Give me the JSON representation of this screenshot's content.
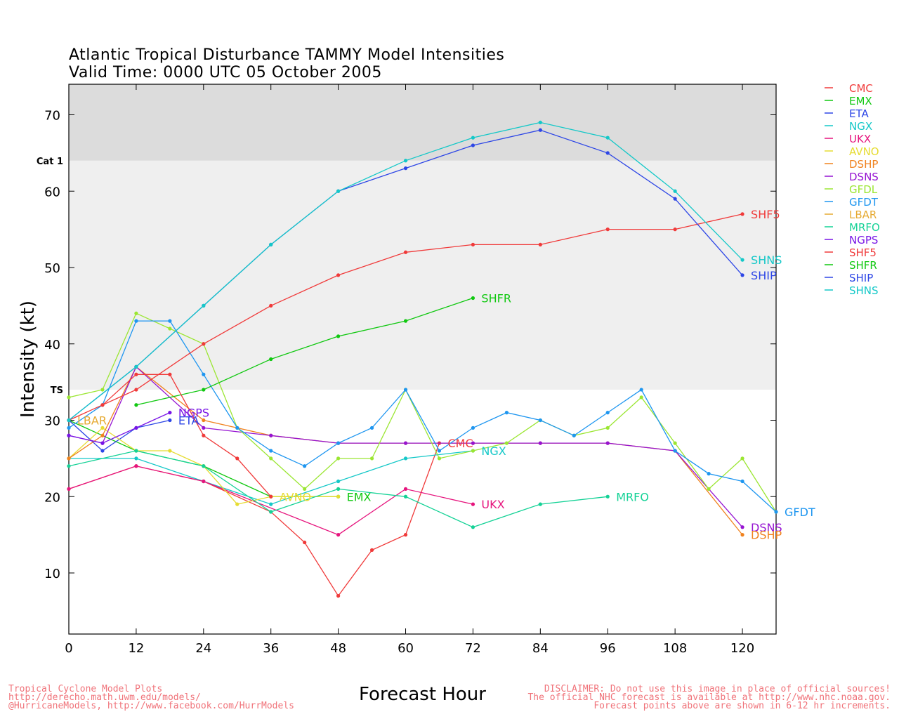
{
  "chart_data": {
    "type": "line",
    "title": "Atlantic Tropical Disturbance TAMMY Model Intensities",
    "subtitle": "Valid Time: 0000 UTC 05 October 2005",
    "xlabel": "Forecast Hour",
    "ylabel": "Intensity (kt)",
    "xlim": [
      0,
      126
    ],
    "ylim": [
      2,
      74
    ],
    "x_ticks": [
      0,
      12,
      24,
      36,
      48,
      60,
      72,
      84,
      96,
      108,
      120
    ],
    "y_ticks": [
      10,
      20,
      30,
      40,
      50,
      60,
      70
    ],
    "bands": [
      {
        "label": "TS",
        "from": 34,
        "to": 64,
        "color": "#efefef"
      },
      {
        "label": "Cat 1",
        "from": 64,
        "to": 74,
        "color": "#dcdcdc"
      }
    ],
    "legend_position": "right",
    "series": [
      {
        "name": "CMC",
        "color": "#f03a3a",
        "label": "CMC",
        "points": [
          [
            0,
            21
          ],
          [
            12,
            24
          ],
          [
            24,
            22
          ],
          [
            36,
            18
          ],
          [
            42,
            14
          ],
          [
            48,
            7
          ],
          [
            54,
            13
          ],
          [
            60,
            15
          ],
          [
            66,
            27
          ]
        ]
      },
      {
        "name": "EMX",
        "color": "#10c810",
        "label": "EMX",
        "points": [
          [
            0,
            30
          ],
          [
            12,
            26
          ],
          [
            24,
            24
          ],
          [
            36,
            20
          ],
          [
            48,
            20
          ]
        ]
      },
      {
        "name": "ETA",
        "color": "#2d46e6",
        "label": "ETA",
        "points": [
          [
            0,
            30
          ],
          [
            6,
            26
          ],
          [
            12,
            29
          ],
          [
            18,
            30
          ]
        ]
      },
      {
        "name": "NGX",
        "color": "#14c8c8",
        "label": "NGX",
        "points": [
          [
            0,
            25
          ],
          [
            12,
            25
          ],
          [
            24,
            22
          ],
          [
            36,
            19
          ],
          [
            48,
            22
          ],
          [
            60,
            25
          ],
          [
            72,
            26
          ]
        ]
      },
      {
        "name": "UKX",
        "color": "#e6147d",
        "label": "UKX",
        "points": [
          [
            0,
            21
          ],
          [
            12,
            24
          ],
          [
            24,
            22
          ],
          [
            48,
            15
          ],
          [
            60,
            21
          ],
          [
            72,
            19
          ]
        ]
      },
      {
        "name": "AVNO",
        "color": "#e6dc32",
        "label": "AVNO",
        "points": [
          [
            0,
            25
          ],
          [
            6,
            29
          ],
          [
            12,
            26
          ],
          [
            18,
            26
          ],
          [
            24,
            24
          ],
          [
            30,
            19
          ],
          [
            36,
            20
          ],
          [
            48,
            20
          ]
        ]
      },
      {
        "name": "DSHP",
        "color": "#f0821e",
        "label": "DSHP",
        "points": [
          [
            0,
            25
          ],
          [
            6,
            28
          ],
          [
            12,
            37
          ],
          [
            24,
            30
          ],
          [
            36,
            28
          ],
          [
            48,
            27
          ],
          [
            60,
            27
          ],
          [
            72,
            27
          ],
          [
            84,
            27
          ],
          [
            96,
            27
          ],
          [
            108,
            26
          ],
          [
            120,
            15
          ]
        ]
      },
      {
        "name": "DSNS",
        "color": "#9614d2",
        "label": "DSNS",
        "points": [
          [
            0,
            28
          ],
          [
            6,
            27
          ],
          [
            12,
            37
          ],
          [
            24,
            29
          ],
          [
            36,
            28
          ],
          [
            48,
            27
          ],
          [
            60,
            27
          ],
          [
            72,
            27
          ],
          [
            84,
            27
          ],
          [
            96,
            27
          ],
          [
            108,
            26
          ],
          [
            120,
            16
          ]
        ]
      },
      {
        "name": "GFDL",
        "color": "#9be632",
        "label": "GFDL",
        "points": [
          [
            0,
            33
          ],
          [
            6,
            34
          ],
          [
            12,
            44
          ],
          [
            18,
            42
          ],
          [
            24,
            40
          ],
          [
            30,
            29
          ],
          [
            36,
            25
          ],
          [
            42,
            21
          ],
          [
            48,
            25
          ],
          [
            54,
            25
          ],
          [
            60,
            34
          ],
          [
            66,
            25
          ],
          [
            72,
            26
          ],
          [
            78,
            27
          ],
          [
            84,
            30
          ],
          [
            90,
            28
          ],
          [
            96,
            29
          ],
          [
            102,
            33
          ],
          [
            108,
            27
          ],
          [
            114,
            21
          ],
          [
            120,
            25
          ],
          [
            126,
            18
          ]
        ]
      },
      {
        "name": "GFDT",
        "color": "#1e96f0",
        "label": "GFDT",
        "points": [
          [
            0,
            29
          ],
          [
            6,
            32
          ],
          [
            12,
            43
          ],
          [
            18,
            43
          ],
          [
            24,
            36
          ],
          [
            30,
            29
          ],
          [
            36,
            26
          ],
          [
            42,
            24
          ],
          [
            48,
            27
          ],
          [
            54,
            29
          ],
          [
            60,
            34
          ],
          [
            66,
            26
          ],
          [
            72,
            29
          ],
          [
            78,
            31
          ],
          [
            84,
            30
          ],
          [
            90,
            28
          ],
          [
            96,
            31
          ],
          [
            102,
            34
          ],
          [
            108,
            26
          ],
          [
            114,
            23
          ],
          [
            120,
            22
          ],
          [
            126,
            18
          ]
        ]
      },
      {
        "name": "LBAR",
        "color": "#e6aa32",
        "label": "LBAR",
        "points": [
          [
            0,
            30
          ]
        ]
      },
      {
        "name": "MRFO",
        "color": "#14d296",
        "label": "MRFO",
        "points": [
          [
            0,
            24
          ],
          [
            12,
            26
          ],
          [
            24,
            24
          ],
          [
            36,
            18
          ],
          [
            48,
            21
          ],
          [
            60,
            20
          ],
          [
            72,
            16
          ],
          [
            84,
            19
          ],
          [
            96,
            20
          ]
        ]
      },
      {
        "name": "NGPS",
        "color": "#7814e6",
        "label": "NGPS",
        "points": [
          [
            0,
            28
          ],
          [
            6,
            27
          ],
          [
            12,
            29
          ],
          [
            18,
            31
          ]
        ]
      },
      {
        "name": "SHF5",
        "color": "#f03a3a",
        "label": "SHF5",
        "points": [
          [
            0,
            30
          ],
          [
            12,
            34
          ],
          [
            24,
            40
          ],
          [
            36,
            45
          ],
          [
            48,
            49
          ],
          [
            60,
            52
          ],
          [
            72,
            53
          ],
          [
            84,
            53
          ],
          [
            96,
            55
          ],
          [
            108,
            55
          ],
          [
            120,
            57
          ]
        ]
      },
      {
        "name": "SHFR",
        "color": "#10c810",
        "label": "SHFR",
        "points": [
          [
            12,
            32
          ],
          [
            24,
            34
          ],
          [
            36,
            38
          ],
          [
            48,
            41
          ],
          [
            60,
            43
          ],
          [
            72,
            46
          ]
        ]
      },
      {
        "name": "SHIP",
        "color": "#2d46e6",
        "label": "SHIP",
        "points": [
          [
            0,
            30
          ],
          [
            12,
            37
          ],
          [
            24,
            45
          ],
          [
            36,
            53
          ],
          [
            48,
            60
          ],
          [
            60,
            63
          ],
          [
            72,
            66
          ],
          [
            84,
            68
          ],
          [
            96,
            65
          ],
          [
            108,
            59
          ],
          [
            120,
            49
          ]
        ]
      },
      {
        "name": "SHNS",
        "color": "#14c8c8",
        "label": "SHNS",
        "points": [
          [
            0,
            30
          ],
          [
            12,
            37
          ],
          [
            24,
            45
          ],
          [
            36,
            53
          ],
          [
            48,
            60
          ],
          [
            60,
            64
          ],
          [
            72,
            67
          ],
          [
            84,
            69
          ],
          [
            96,
            67
          ],
          [
            108,
            60
          ],
          [
            120,
            51
          ]
        ]
      },
      {
        "name": "SHF5 extra",
        "color": "#f03a3a",
        "label": "",
        "points": [
          [
            6,
            32
          ],
          [
            12,
            36
          ],
          [
            18,
            36
          ],
          [
            24,
            28
          ],
          [
            30,
            25
          ],
          [
            36,
            20
          ]
        ]
      }
    ],
    "end_labels": [
      {
        "text": "SHF5",
        "color": "#f03a3a",
        "at": [
          120,
          57
        ]
      },
      {
        "text": "SHNS",
        "color": "#14c8c8",
        "at": [
          120,
          51
        ]
      },
      {
        "text": "SHIP",
        "color": "#2d46e6",
        "at": [
          120,
          49
        ]
      },
      {
        "text": "SHFR",
        "color": "#10c810",
        "at": [
          72,
          46
        ]
      },
      {
        "text": "NGPS",
        "color": "#7814e6",
        "at": [
          18,
          31
        ]
      },
      {
        "text": "ETA",
        "color": "#2d46e6",
        "at": [
          18,
          30
        ]
      },
      {
        "text": "LBAR",
        "color": "#e6aa32",
        "at": [
          0,
          30
        ]
      },
      {
        "text": "CMC",
        "color": "#f03a3a",
        "at": [
          66,
          27
        ]
      },
      {
        "text": "NGX",
        "color": "#14c8c8",
        "at": [
          72,
          26
        ]
      },
      {
        "text": "AVNO",
        "color": "#e6dc32",
        "at": [
          36,
          20
        ]
      },
      {
        "text": "EMX",
        "color": "#10c810",
        "at": [
          48,
          20
        ]
      },
      {
        "text": "UKX",
        "color": "#e6147d",
        "at": [
          72,
          19
        ]
      },
      {
        "text": "MRFO",
        "color": "#14d296",
        "at": [
          96,
          20
        ]
      },
      {
        "text": "GFDT",
        "color": "#1e96f0",
        "at": [
          126,
          18
        ]
      },
      {
        "text": "DSNS",
        "color": "#9614d2",
        "at": [
          120,
          16
        ]
      },
      {
        "text": "DSHP",
        "color": "#f0821e",
        "at": [
          120,
          15
        ]
      }
    ]
  },
  "legend": [
    {
      "name": "CMC",
      "color": "#f03a3a"
    },
    {
      "name": "EMX",
      "color": "#10c810"
    },
    {
      "name": "ETA",
      "color": "#2d46e6"
    },
    {
      "name": "NGX",
      "color": "#14c8c8"
    },
    {
      "name": "UKX",
      "color": "#e6147d"
    },
    {
      "name": "AVNO",
      "color": "#e6dc32"
    },
    {
      "name": "DSHP",
      "color": "#f0821e"
    },
    {
      "name": "DSNS",
      "color": "#9614d2"
    },
    {
      "name": "GFDL",
      "color": "#9be632"
    },
    {
      "name": "GFDT",
      "color": "#1e96f0"
    },
    {
      "name": "LBAR",
      "color": "#e6aa32"
    },
    {
      "name": "MRFO",
      "color": "#14d296"
    },
    {
      "name": "NGPS",
      "color": "#7814e6"
    },
    {
      "name": "SHF5",
      "color": "#f03a3a"
    },
    {
      "name": "SHFR",
      "color": "#10c810"
    },
    {
      "name": "SHIP",
      "color": "#2d46e6"
    },
    {
      "name": "SHNS",
      "color": "#14c8c8"
    }
  ],
  "footer": {
    "left": [
      "Tropical Cyclone Model Plots",
      "http://derecho.math.uwm.edu/models/",
      "@HurricaneModels, http://www.facebook.com/HurrModels"
    ],
    "right": [
      "DISCLAIMER: Do not use this image in place of official sources!",
      "The official NHC forecast is available at http://www.nhc.noaa.gov.",
      "Forecast points above are shown in 6-12 hr increments."
    ]
  }
}
